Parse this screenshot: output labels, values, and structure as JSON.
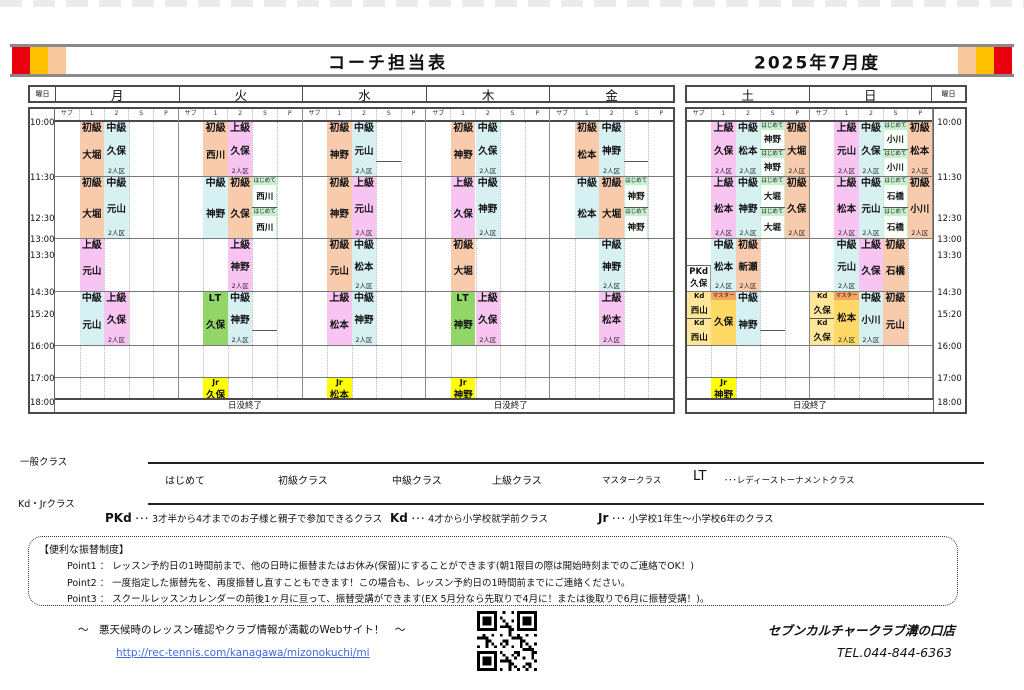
{
  "title_bar": {
    "title": "コーチ担当表",
    "period": "2025年7月度"
  },
  "colors": {
    "初級": "#f8cbad",
    "中級": "#d7f0f2",
    "上級": "#f8c5f3",
    "はじめて": "#c6efce",
    "LT": "#92d668",
    "マスター": "#f5a55f",
    "master_body": "#ffd966",
    "Jr": "#ffff00",
    "Kd": "#ffe699",
    "PKd": "#ffffff"
  },
  "schedule": {
    "day_col_label": "曜日",
    "sub_columns": [
      "サブ",
      "1",
      "2",
      "S",
      "P"
    ],
    "times": [
      "10:00",
      "11:30",
      "12:30",
      "13:00",
      "13:30",
      "14:30",
      "15:20",
      "16:00",
      "17:00",
      "18:00"
    ],
    "sunset_label": "日没終了",
    "weekdays": [
      {
        "label": "月",
        "cells": [
          {
            "row": "r1000",
            "col": 1,
            "level": "初級",
            "name": "大堀"
          },
          {
            "row": "r1000",
            "col": 2,
            "level": "中級",
            "name": "久保",
            "note": "2人区"
          },
          {
            "row": "r1130",
            "col": 1,
            "level": "初級",
            "name": "大堀"
          },
          {
            "row": "r1130",
            "col": 2,
            "level": "中級",
            "name": "元山",
            "note": "2人区"
          },
          {
            "row": "r1300",
            "col": 1,
            "level": "上級",
            "name": "元山"
          },
          {
            "row": "r1430",
            "col": 1,
            "level": "中級",
            "name": "元山"
          },
          {
            "row": "r1430",
            "col": 2,
            "level": "上級",
            "name": "久保",
            "note": "2人区"
          }
        ]
      },
      {
        "label": "火",
        "cells": [
          {
            "row": "r1000",
            "col": 1,
            "level": "初級",
            "name": "西川"
          },
          {
            "row": "r1000",
            "col": 2,
            "level": "上級",
            "name": "久保",
            "note": "2人区"
          },
          {
            "row": "r1130",
            "col": 1,
            "level": "中級",
            "name": "神野"
          },
          {
            "row": "r1130",
            "col": 2,
            "level": "初級",
            "name": "久保"
          },
          {
            "row": "r1130",
            "col": 3,
            "type": "double",
            "level": "はじめて",
            "names": [
              "西川",
              "西川"
            ]
          },
          {
            "row": "r1300",
            "col": 2,
            "level": "上級",
            "name": "神野",
            "note": "2人区"
          },
          {
            "row": "r1430",
            "col": 1,
            "level": "LT",
            "name": "久保"
          },
          {
            "row": "r1430",
            "col": 2,
            "level": "中級",
            "name": "神野",
            "note": "2人区"
          },
          {
            "row": "r1430",
            "col": 3,
            "type": "divider"
          },
          {
            "row": "r1700",
            "col": 1,
            "level": "Jr",
            "name": "久保"
          }
        ]
      },
      {
        "label": "水",
        "cells": [
          {
            "row": "r1000",
            "col": 1,
            "level": "初級",
            "name": "神野"
          },
          {
            "row": "r1000",
            "col": 2,
            "level": "中級",
            "name": "元山",
            "note": "2人区"
          },
          {
            "row": "r1000",
            "col": 3,
            "type": "divider"
          },
          {
            "row": "r1130",
            "col": 1,
            "level": "初級",
            "name": "神野"
          },
          {
            "row": "r1130",
            "col": 2,
            "level": "上級",
            "name": "元山",
            "note": "2人区"
          },
          {
            "row": "r1300",
            "col": 1,
            "level": "初級",
            "name": "元山"
          },
          {
            "row": "r1300",
            "col": 2,
            "level": "中級",
            "name": "松本",
            "note": "2人区"
          },
          {
            "row": "r1430",
            "col": 1,
            "level": "上級",
            "name": "松本"
          },
          {
            "row": "r1430",
            "col": 2,
            "level": "中級",
            "name": "神野",
            "note": "2人区"
          },
          {
            "row": "r1700",
            "col": 1,
            "level": "Jr",
            "name": "松本"
          }
        ]
      },
      {
        "label": "木",
        "cells": [
          {
            "row": "r1000",
            "col": 1,
            "level": "初級",
            "name": "神野"
          },
          {
            "row": "r1000",
            "col": 2,
            "level": "中級",
            "name": "久保",
            "note": "2人区"
          },
          {
            "row": "r1130",
            "col": 1,
            "level": "上級",
            "name": "久保"
          },
          {
            "row": "r1130",
            "col": 2,
            "level": "中級",
            "name": "神野",
            "note": "2人区"
          },
          {
            "row": "r1300",
            "col": 1,
            "level": "初級",
            "name": "大堀"
          },
          {
            "row": "r1430",
            "col": 1,
            "level": "LT",
            "name": "神野"
          },
          {
            "row": "r1430",
            "col": 2,
            "level": "上級",
            "name": "久保",
            "note": "2人区"
          },
          {
            "row": "r1700",
            "col": 1,
            "level": "Jr",
            "name": "神野"
          }
        ]
      },
      {
        "label": "金",
        "cells": [
          {
            "row": "r1000",
            "col": 1,
            "level": "初級",
            "name": "松本"
          },
          {
            "row": "r1000",
            "col": 2,
            "level": "中級",
            "name": "神野",
            "note": "2人区"
          },
          {
            "row": "r1000",
            "col": 3,
            "type": "divider"
          },
          {
            "row": "r1130",
            "col": 1,
            "level": "中級",
            "name": "松本"
          },
          {
            "row": "r1130",
            "col": 2,
            "level": "初級",
            "name": "大堀"
          },
          {
            "row": "r1130",
            "col": 3,
            "type": "double",
            "level": "はじめて",
            "names": [
              "神野",
              "神野"
            ]
          },
          {
            "row": "r1300",
            "col": 2,
            "level": "中級",
            "name": "神野",
            "note": "2人区"
          },
          {
            "row": "r1430",
            "col": 2,
            "level": "上級",
            "name": "松本",
            "note": "2人区"
          }
        ]
      }
    ],
    "weekend": [
      {
        "label": "土",
        "cells": [
          {
            "row": "r1000",
            "col": 1,
            "level": "上級",
            "name": "久保",
            "note": "2人区"
          },
          {
            "row": "r1000",
            "col": 2,
            "level": "中級",
            "name": "松本",
            "note": "2人区"
          },
          {
            "row": "r1000",
            "col": 3,
            "type": "double",
            "level": "はじめて",
            "names": [
              "神野",
              "神野"
            ]
          },
          {
            "row": "r1000",
            "col": 4,
            "level": "初級",
            "name": "大堀",
            "note": "2人区"
          },
          {
            "row": "r1130",
            "col": 1,
            "level": "上級",
            "name": "松本",
            "note": "2人区"
          },
          {
            "row": "r1130",
            "col": 2,
            "level": "中級",
            "name": "神野",
            "note": "2人区"
          },
          {
            "row": "r1130",
            "col": 3,
            "type": "double",
            "level": "はじめて",
            "names": [
              "大堀",
              "大堀"
            ]
          },
          {
            "row": "r1130",
            "col": 4,
            "level": "初級",
            "name": "久保",
            "note": "2人区"
          },
          {
            "row": "r1300",
            "col": 0,
            "type": "pkd",
            "level": "PKd",
            "name": "久保"
          },
          {
            "row": "r1300",
            "col": 1,
            "level": "中級",
            "name": "松本",
            "note": "2人区"
          },
          {
            "row": "r1300",
            "col": 2,
            "level": "初級",
            "name": "新瀬",
            "note": "2人区"
          },
          {
            "row": "r1430",
            "col": 0,
            "type": "double",
            "level": "Kd",
            "names": [
              "西山",
              "西山"
            ]
          },
          {
            "row": "r1430",
            "col": 1,
            "level": "マスター",
            "name": "久保"
          },
          {
            "row": "r1430",
            "col": 2,
            "level": "中級",
            "name": "神野"
          },
          {
            "row": "r1430",
            "col": 3,
            "type": "divider"
          },
          {
            "row": "r1700",
            "col": 1,
            "level": "Jr",
            "name": "神野"
          }
        ]
      },
      {
        "label": "日",
        "cells": [
          {
            "row": "r1000",
            "col": 1,
            "level": "上級",
            "name": "元山",
            "note": "2人区"
          },
          {
            "row": "r1000",
            "col": 2,
            "level": "中級",
            "name": "久保",
            "note": "2人区"
          },
          {
            "row": "r1000",
            "col": 3,
            "type": "double",
            "level": "はじめて",
            "names": [
              "小川",
              "小川"
            ]
          },
          {
            "row": "r1000",
            "col": 4,
            "level": "初級",
            "name": "松本",
            "note": "2人区"
          },
          {
            "row": "r1130",
            "col": 1,
            "level": "上級",
            "name": "松本",
            "note": "2人区"
          },
          {
            "row": "r1130",
            "col": 2,
            "level": "中級",
            "name": "元山",
            "note": "2人区"
          },
          {
            "row": "r1130",
            "col": 3,
            "type": "double",
            "level": "はじめて",
            "names": [
              "石橋",
              "石橋"
            ]
          },
          {
            "row": "r1130",
            "col": 4,
            "level": "初級",
            "name": "小川",
            "note": "2人区"
          },
          {
            "row": "r1300",
            "col": 1,
            "level": "中級",
            "name": "元山",
            "note": "2人区"
          },
          {
            "row": "r1300",
            "col": 2,
            "level": "上級",
            "name": "久保"
          },
          {
            "row": "r1300",
            "col": 3,
            "level": "初級",
            "name": "石橋"
          },
          {
            "row": "r1430",
            "col": 0,
            "type": "double",
            "level": "Kd",
            "names": [
              "久保",
              "久保"
            ]
          },
          {
            "row": "r1430",
            "col": 1,
            "level": "マスター",
            "name": "松本",
            "note": "2人区"
          },
          {
            "row": "r1430",
            "col": 2,
            "level": "中級",
            "name": "小川",
            "note": "2人区"
          },
          {
            "row": "r1430",
            "col": 3,
            "level": "初級",
            "name": "元山"
          }
        ]
      }
    ]
  },
  "legend_general": {
    "label": "一般クラス",
    "items": [
      "はじめて",
      "初級クラス",
      "中級クラス",
      "上級クラス",
      "マスタークラス"
    ],
    "lt_code": "LT",
    "lt_desc": "･･･レディーストーナメントクラス"
  },
  "legend_kids": {
    "label": "Kd・Jrクラス",
    "items": [
      {
        "code": "PKd",
        "desc": "･･･ 3才半から4才までのお子様と親子で参加できるクラス"
      },
      {
        "code": "Kd",
        "desc": "･･･ 4才から小学校就学前クラス"
      },
      {
        "code": "Jr",
        "desc": "･･･ 小学校1年生～小学校6年のクラス"
      }
    ]
  },
  "transfer_box": {
    "title": "【便利な振替制度】",
    "points": [
      "Point1 ： レッスン予約日の1時間前まで、他の日時に振替またはお休み(保留)にすることができます(朝1限目の際は開始時刻までのご連絡でOK！)",
      "Point2 ： 一度指定した振替先を、再度振替し直すこともできます！この場合も、レッスン予約日の1時間前までにご連絡ください。",
      "Point3 ： スクールレッスンカレンダーの前後1ヶ月に亘って、振替受講ができます(EX 5月分なら先取りで4月に！または後取りで6月に振替受講！)。"
    ]
  },
  "footer": {
    "web_note": "～　悪天候時のレッスン確認やクラブ情報が満載のWebサイト！　～",
    "url": "http://rec-tennis.com/kanagawa/mizonokuchi/mi",
    "shop": "セブンカルチャークラブ溝の口店",
    "tel": "TEL.044-844-6363"
  }
}
